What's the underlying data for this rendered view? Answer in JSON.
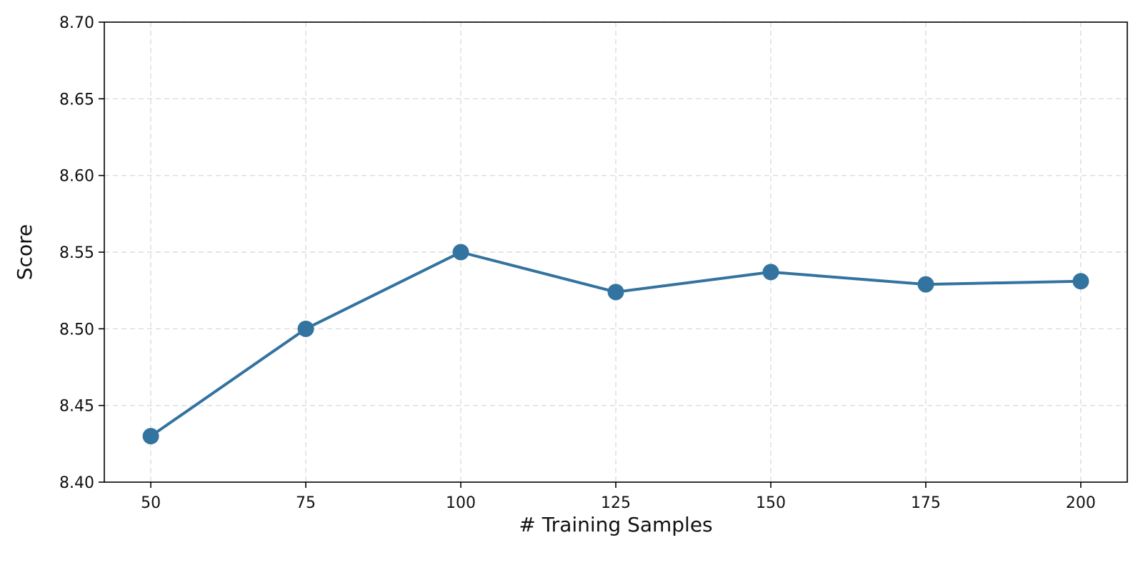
{
  "chart_data": {
    "type": "line",
    "title": "",
    "xlabel": "# Training Samples",
    "ylabel": "Score",
    "x": [
      50,
      75,
      100,
      125,
      150,
      175,
      200
    ],
    "series": [
      {
        "values": [
          8.43,
          8.5,
          8.55,
          8.524,
          8.537,
          8.529,
          8.531
        ],
        "color": "#33739f",
        "marker": "circle"
      }
    ],
    "xticks": [
      "50",
      "75",
      "100",
      "125",
      "150",
      "175",
      "200"
    ],
    "yticks": [
      "8.40",
      "8.45",
      "8.50",
      "8.55",
      "8.60",
      "8.65",
      "8.70"
    ],
    "xlim": [
      42.5,
      207.5
    ],
    "ylim": [
      8.4,
      8.7
    ],
    "grid": true,
    "grid_style": "dashed",
    "legend": "none"
  }
}
